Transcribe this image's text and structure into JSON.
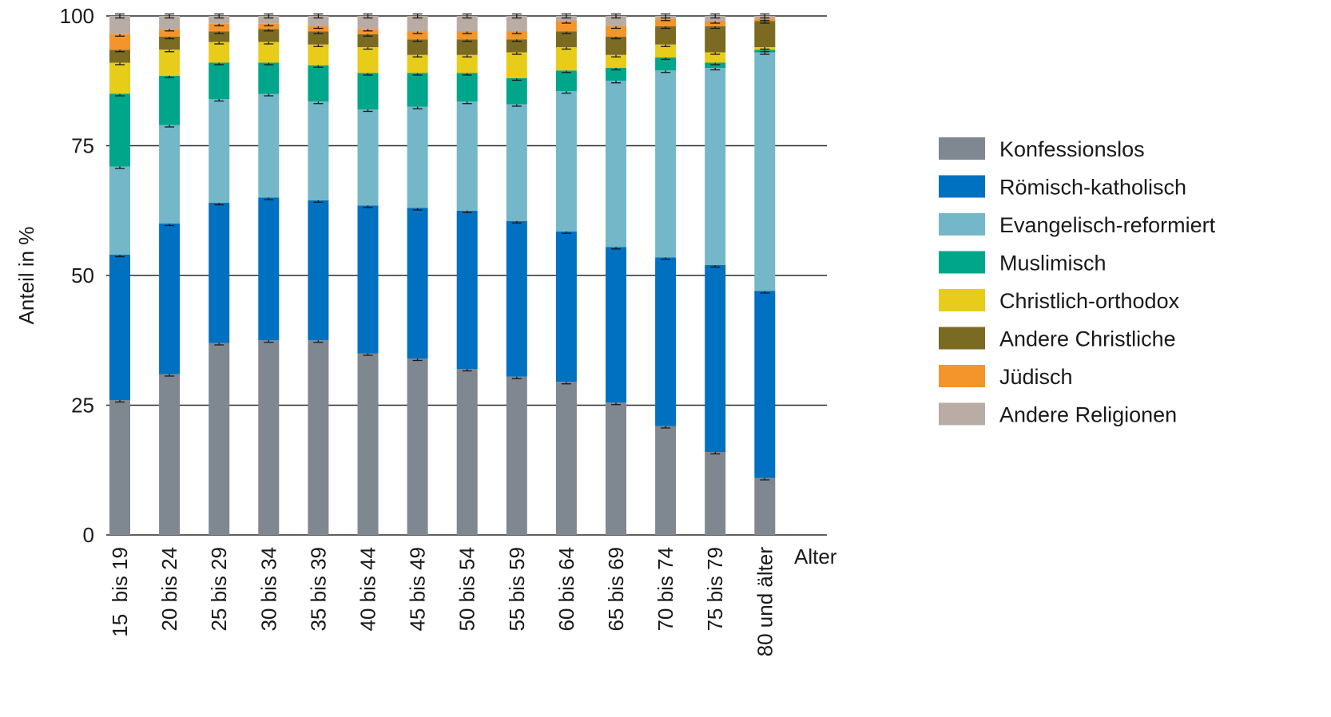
{
  "chart_data": {
    "type": "bar",
    "stacked": true,
    "title": "",
    "ylabel": "Anteil in %",
    "xlabel": "Alter",
    "ylim": [
      0,
      100
    ],
    "yticks": [
      0,
      25,
      50,
      75,
      100
    ],
    "grid": true,
    "legend_position": "right",
    "error_bars": true,
    "categories": [
      "15  bis 19",
      "20 bis 24",
      "25 bis 29",
      "30 bis 34",
      "35 bis 39",
      "40 bis 44",
      "45 bis 49",
      "50 bis 54",
      "55 bis 59",
      "60 bis 64",
      "65 bis 69",
      "70 bis 74",
      "75 bis 79",
      "80 und älter"
    ],
    "series": [
      {
        "name": "Konfessionslos",
        "color": "#7f8790",
        "values": [
          26,
          31,
          37,
          37.5,
          37.5,
          35,
          34,
          32,
          30.5,
          29.5,
          25.5,
          21,
          16,
          11
        ]
      },
      {
        "name": "Römisch-katholisch",
        "color": "#0070c0",
        "values": [
          28,
          29,
          27,
          27.5,
          27,
          28.5,
          29,
          30.5,
          30,
          29,
          30,
          32.5,
          36,
          36
        ]
      },
      {
        "name": "Evangelisch-reformiert",
        "color": "#74b7c8",
        "values": [
          17,
          19,
          20,
          20,
          19,
          18.5,
          19.5,
          21,
          22.5,
          27,
          32,
          36,
          38,
          46
        ]
      },
      {
        "name": "Muslimisch",
        "color": "#00a68a",
        "values": [
          14,
          9.5,
          7,
          6,
          7,
          7,
          6.5,
          5.5,
          5,
          4,
          2.5,
          2.5,
          1,
          0.5
        ]
      },
      {
        "name": "Christlich-orthodox",
        "color": "#e8cc1a",
        "values": [
          6,
          5,
          4,
          4,
          4,
          5,
          3.5,
          3.5,
          5,
          4.5,
          2.5,
          2.5,
          2,
          0.5
        ]
      },
      {
        "name": "Andere Christliche",
        "color": "#7b6a21",
        "values": [
          2.5,
          2.5,
          2,
          2.5,
          2.5,
          2.5,
          3,
          3,
          2.5,
          3,
          3.5,
          3.5,
          5,
          5
        ]
      },
      {
        "name": "Jüdisch",
        "color": "#f4952b",
        "values": [
          3,
          1.5,
          1.5,
          1,
          1,
          1,
          1.5,
          1.5,
          1.5,
          2,
          2,
          1.5,
          1,
          0.5
        ]
      },
      {
        "name": "Andere Religionen",
        "color": "#b8aca5",
        "values": [
          3.5,
          2.5,
          1.5,
          1.5,
          2,
          2.5,
          3,
          3,
          3,
          1,
          2,
          0.5,
          1,
          0.5
        ]
      }
    ]
  }
}
